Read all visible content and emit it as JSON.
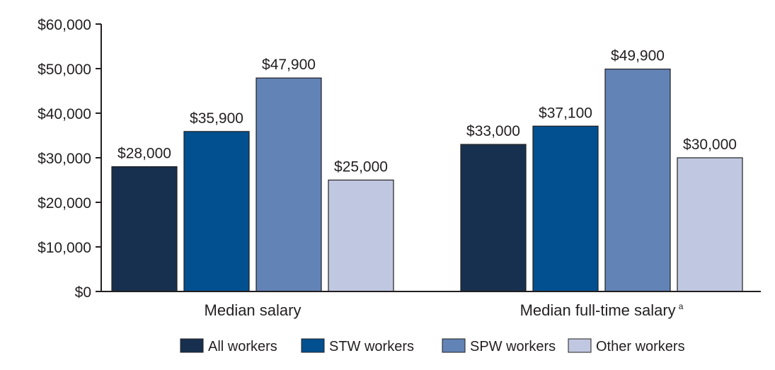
{
  "chart_data": {
    "type": "bar",
    "categories": [
      "Median salary",
      "Median full-time salary"
    ],
    "category_superscripts": [
      "",
      "a"
    ],
    "series": [
      {
        "name": "All workers",
        "color": "#17304f",
        "values": [
          28000,
          33000
        ],
        "labels": [
          "$28,000",
          "$33,000"
        ]
      },
      {
        "name": "STW workers",
        "color": "#02508f",
        "values": [
          35900,
          37100
        ],
        "labels": [
          "$35,900",
          "$37,100"
        ]
      },
      {
        "name": "SPW workers",
        "color": "#6283b6",
        "values": [
          47900,
          49900
        ],
        "labels": [
          "$47,900",
          "$49,900"
        ]
      },
      {
        "name": "Other workers",
        "color": "#c0c8e1",
        "values": [
          25000,
          30000
        ],
        "labels": [
          "$25,000",
          "$30,000"
        ]
      }
    ],
    "ylim": [
      0,
      60000
    ],
    "yticks": [
      0,
      10000,
      20000,
      30000,
      40000,
      50000,
      60000
    ],
    "ytick_labels": [
      "$0",
      "$10,000",
      "$20,000",
      "$30,000",
      "$40,000",
      "$50,000",
      "$60,000"
    ],
    "title": "",
    "xlabel": "",
    "ylabel": "",
    "grid": false,
    "legend_position": "bottom"
  }
}
